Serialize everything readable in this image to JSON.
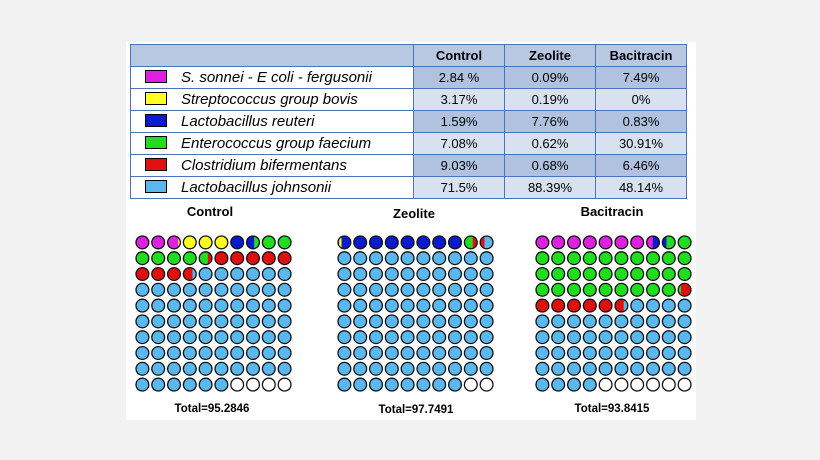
{
  "table": {
    "columns": [
      "Control",
      "Zeolite",
      "Bacitracin"
    ],
    "rows": [
      {
        "label": "S. sonnei - E coli - fergusonii",
        "color": "#e020e0",
        "values": [
          "2.84 %",
          "0.09%",
          "7.49%"
        ]
      },
      {
        "label": "Streptococcus group bovis",
        "color": "#ffff20",
        "values": [
          "3.17%",
          "0.19%",
          "0%"
        ]
      },
      {
        "label": "Lactobacillus reuteri",
        "color": "#0a1ad0",
        "values": [
          "1.59%",
          "7.76%",
          "0.83%"
        ]
      },
      {
        "label": "Enterococcus group faecium",
        "color": "#20dd20",
        "values": [
          "7.08%",
          "0.62%",
          "30.91%"
        ]
      },
      {
        "label": "Clostridium bifermentans",
        "color": "#e01010",
        "values": [
          "9.03%",
          "0.68%",
          "6.46%"
        ]
      },
      {
        "label": "Lactobacillus johnsonii",
        "color": "#5bb8ee",
        "values": [
          "71.5%",
          "88.39%",
          "48.14%"
        ]
      }
    ]
  },
  "chart_data": {
    "type": "waffle",
    "categories": [
      "S. sonnei - E coli - fergusonii",
      "Streptococcus group bovis",
      "Lactobacillus reuteri",
      "Enterococcus group faecium",
      "Clostridium bifermentans",
      "Lactobacillus johnsonii"
    ],
    "colors": [
      "#e020e0",
      "#ffff20",
      "#0a1ad0",
      "#20dd20",
      "#e01010",
      "#5bb8ee"
    ],
    "charts": [
      {
        "title": "Control",
        "total_label": "Total=95.2846",
        "values": [
          2.84,
          3.17,
          1.59,
          7.08,
          9.03,
          71.5
        ]
      },
      {
        "title": "Zeolite",
        "total_label": "Total=97.7491",
        "values": [
          0.09,
          0.19,
          7.76,
          0.62,
          0.68,
          88.39
        ]
      },
      {
        "title": "Bacitracin",
        "total_label": "Total=93.8415",
        "values": [
          7.49,
          0,
          0.83,
          30.91,
          6.46,
          48.14
        ]
      }
    ]
  }
}
